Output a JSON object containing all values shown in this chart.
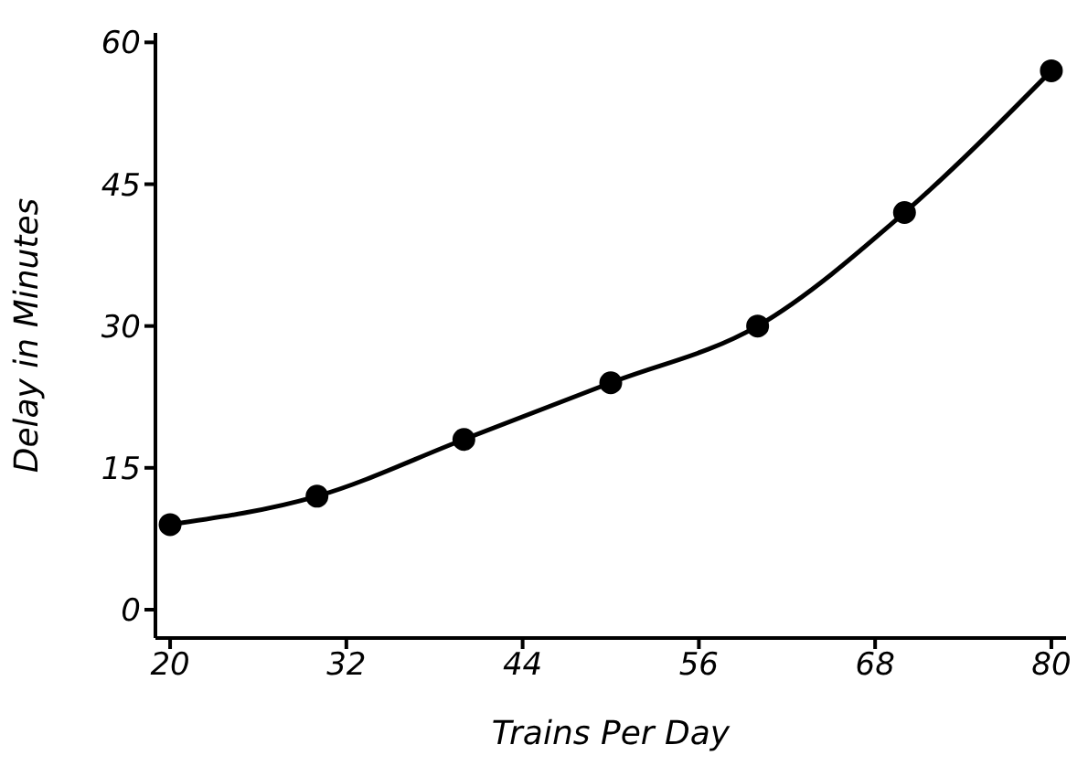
{
  "chart_data": {
    "type": "line",
    "xlabel": "Trains Per Day",
    "ylabel": "Delay in Minutes",
    "x": [
      20,
      30,
      40,
      50,
      60,
      70,
      80
    ],
    "series": [
      {
        "color": "#000000",
        "values": [
          9,
          12,
          18,
          24,
          30,
          42,
          57
        ]
      }
    ],
    "xlim": [
      19,
      81
    ],
    "xticks": [
      20,
      32,
      44,
      56,
      68,
      80
    ],
    "ylim": [
      -3,
      61
    ],
    "yticks": [
      0,
      15,
      30,
      45,
      60
    ],
    "grid": false,
    "legend": false,
    "marker": "circle",
    "line_style": "solid"
  }
}
